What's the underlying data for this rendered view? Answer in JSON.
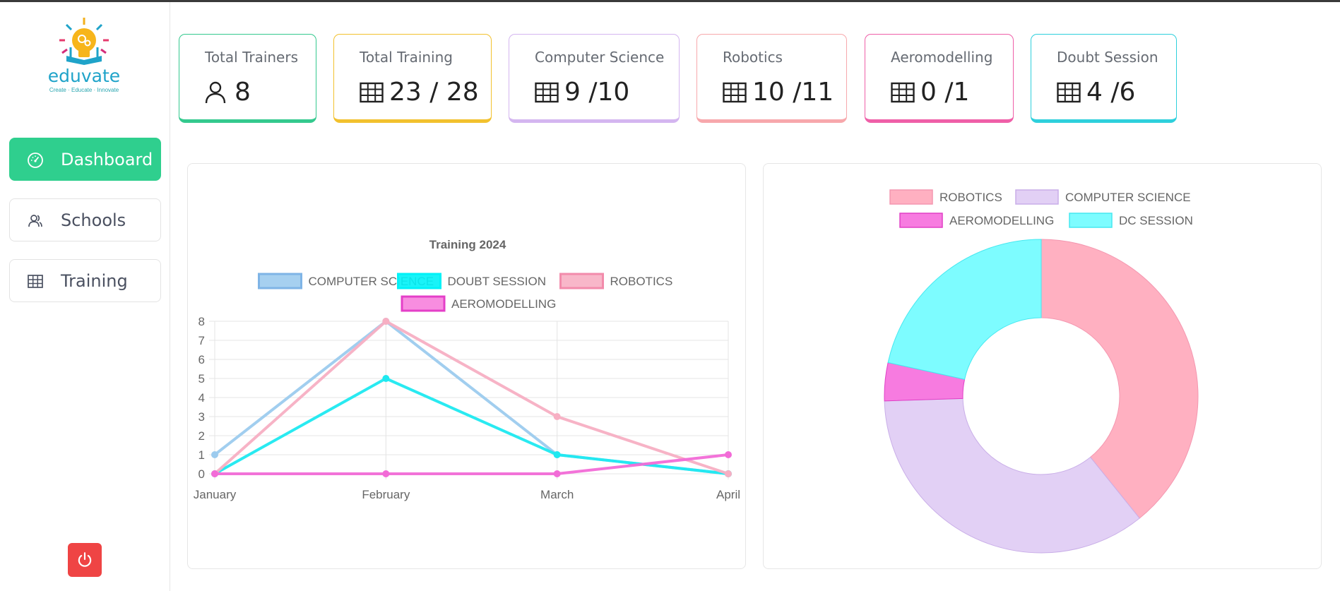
{
  "brand": {
    "name": "eduvate",
    "tagline": "Create · Educate · Innovate"
  },
  "sidebar": {
    "items": [
      {
        "label": "Dashboard",
        "icon": "gauge-icon",
        "active": true
      },
      {
        "label": "Schools",
        "icon": "users-icon",
        "active": false
      },
      {
        "label": "Training",
        "icon": "table-icon",
        "active": false
      }
    ],
    "logout_icon": "power-icon"
  },
  "stats": [
    {
      "title": "Total Trainers",
      "value": "8",
      "icon": "user-icon",
      "color": "#34c98e"
    },
    {
      "title": "Total Training",
      "value": "23 / 28",
      "icon": "table-icon",
      "color": "#f2c12e"
    },
    {
      "title": "Computer Science",
      "value": "9 /10",
      "icon": "table-icon",
      "color": "#d4b6f0"
    },
    {
      "title": "Robotics",
      "value": "10 /11",
      "icon": "table-icon",
      "color": "#f7a8ac"
    },
    {
      "title": "Aeromodelling",
      "value": "0 /1",
      "icon": "table-icon",
      "color": "#ef5fa8"
    },
    {
      "title": "Doubt Session",
      "value": "4 /6",
      "icon": "table-icon",
      "color": "#2ed0dc"
    }
  ],
  "chart_data": [
    {
      "type": "line",
      "title": "Training 2024",
      "categories": [
        "January",
        "February",
        "March",
        "April"
      ],
      "ylim": [
        0,
        8
      ],
      "yticks": [
        "0",
        "1",
        "2",
        "3",
        "4",
        "5",
        "6",
        "7",
        "8"
      ],
      "grid": true,
      "legend_position": "top",
      "series": [
        {
          "name": "COMPUTER SCIENCE",
          "values": [
            1,
            8,
            1,
            0
          ],
          "color": "#9ccbee",
          "fill": "#9ccbee",
          "border": "#7fb4e6"
        },
        {
          "name": "DOUBT SESSION",
          "values": [
            0,
            5,
            1,
            0
          ],
          "color": "#1ee9f0",
          "fill": "#00f2f7",
          "border": "#00f2f7"
        },
        {
          "name": "ROBOTICS",
          "values": [
            0,
            8,
            3,
            0
          ],
          "color": "#f7afc3",
          "fill": "#f7afc3",
          "border": "#f28bab"
        },
        {
          "name": "AEROMODELLING",
          "values": [
            0,
            0,
            0,
            1
          ],
          "color": "#f26bd7",
          "fill": "#f781dd",
          "border": "#e43fc8"
        }
      ]
    },
    {
      "type": "pie",
      "legend_position": "top",
      "slices": [
        {
          "name": "ROBOTICS",
          "value": 10,
          "color": "#ffb0c1",
          "stroke": "#f497b0"
        },
        {
          "name": "COMPUTER SCIENCE",
          "value": 9,
          "color": "#e2d0f5",
          "stroke": "#c9aee8"
        },
        {
          "name": "AEROMODELLING",
          "value": 1,
          "color": "#f77be0",
          "stroke": "#e040c6"
        },
        {
          "name": "DC SESSION",
          "value": 5.5,
          "color": "#7dfcff",
          "stroke": "#46e8f0"
        }
      ]
    }
  ]
}
